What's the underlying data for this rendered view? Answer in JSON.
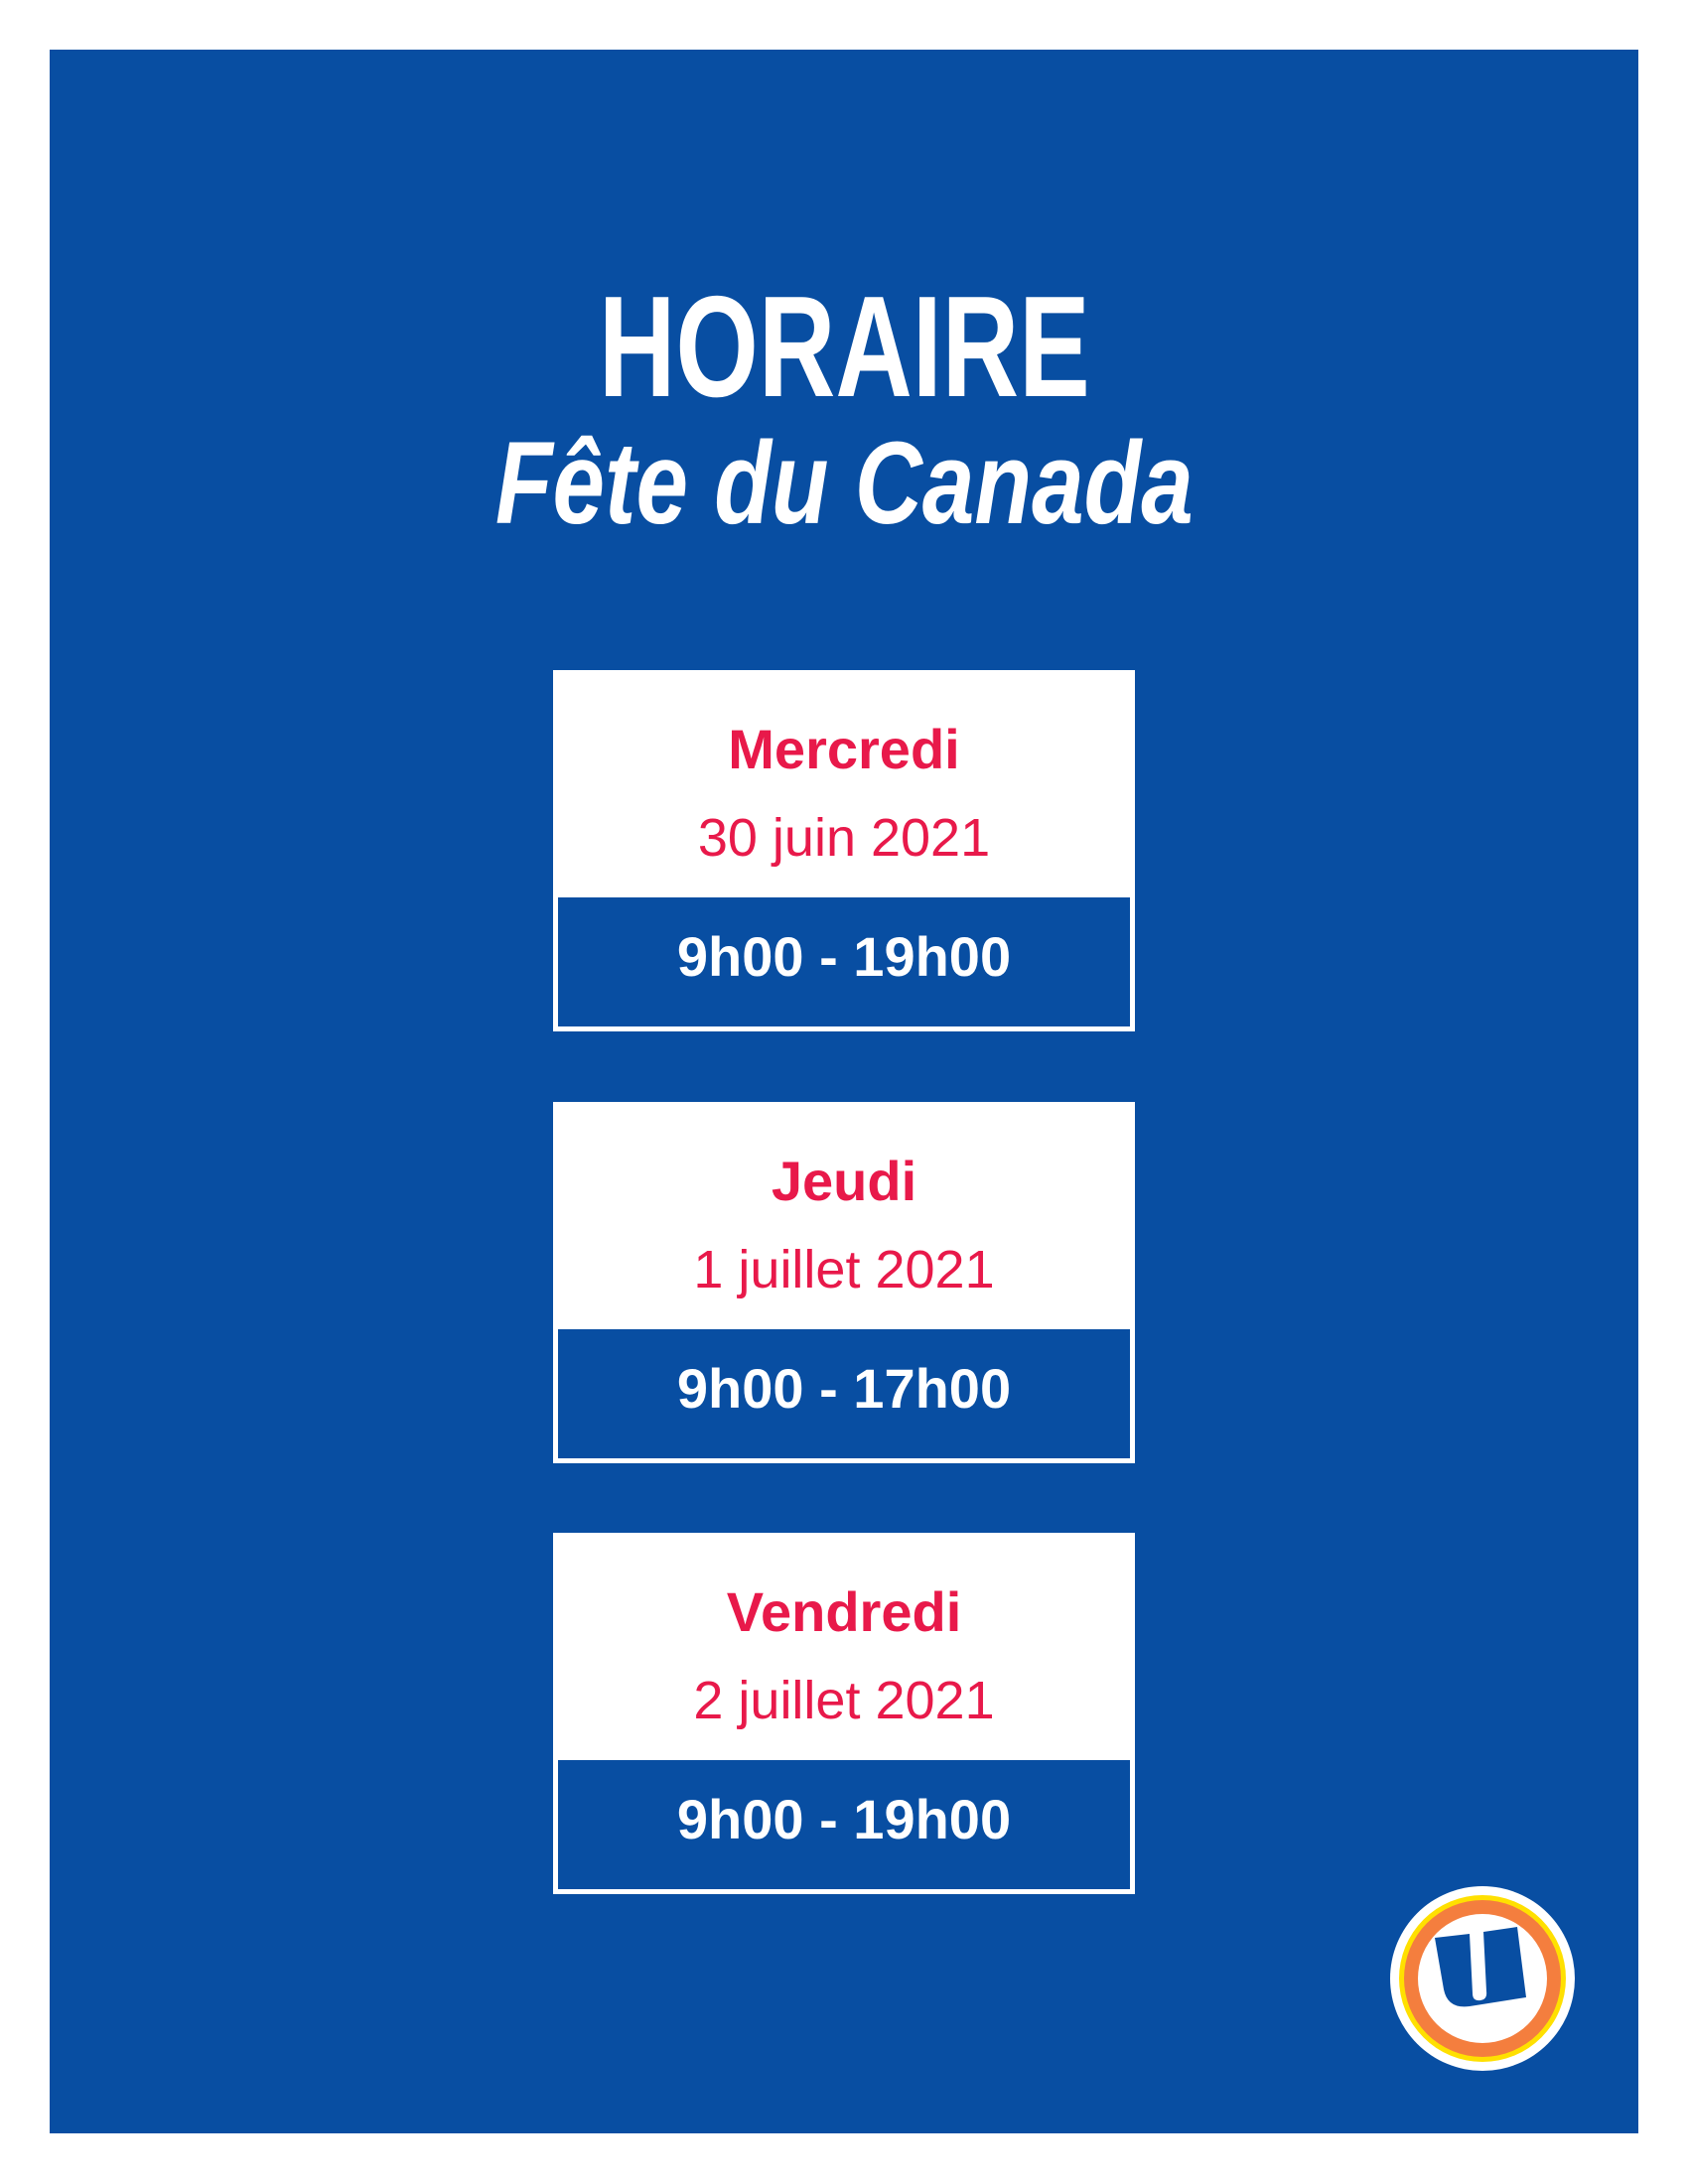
{
  "header": {
    "title": "HORAIRE",
    "subtitle": "Fête du Canada"
  },
  "days": [
    {
      "name": "Mercredi",
      "date": "30 juin 2021",
      "hours": "9h00 - 19h00"
    },
    {
      "name": "Jeudi",
      "date": "1 juillet 2021",
      "hours": "9h00 - 17h00"
    },
    {
      "name": "Vendredi",
      "date": "2 juillet 2021",
      "hours": "9h00 - 19h00"
    }
  ],
  "logo": {
    "icon": "u-logo-icon",
    "letter": "U"
  },
  "colors": {
    "background": "#084ea2",
    "accent": "#e8194a",
    "logo_orange": "#f47e3e",
    "logo_yellow": "#ffe000"
  }
}
